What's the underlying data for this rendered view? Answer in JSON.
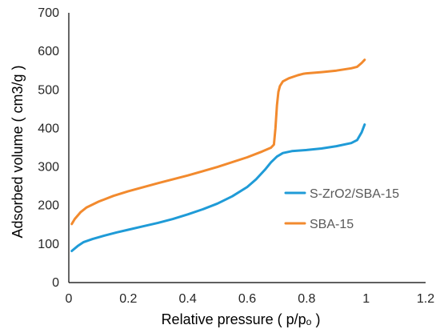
{
  "chart_data": {
    "type": "line",
    "xlabel": "Relative pressure ( p/pₒ )",
    "ylabel": "Adsorbed volume ( cm3/g )",
    "xlim": [
      0,
      1.2
    ],
    "ylim": [
      0,
      700
    ],
    "x_ticks": [
      0,
      0.2,
      0.4,
      0.6,
      0.8,
      1,
      1.2
    ],
    "x_tick_labels": [
      "0",
      "0.2",
      "0.4",
      "0.6",
      "0.8",
      "1",
      "1.2"
    ],
    "y_ticks": [
      0,
      100,
      200,
      300,
      400,
      500,
      600,
      700
    ],
    "y_tick_labels": [
      "0",
      "100",
      "200",
      "300",
      "400",
      "500",
      "600",
      "700"
    ],
    "grid": false,
    "legend_position": "right",
    "series": [
      {
        "name": "S-ZrO2/SBA-15",
        "color": "#1f9bd7",
        "x": [
          0.01,
          0.03,
          0.05,
          0.08,
          0.12,
          0.16,
          0.2,
          0.25,
          0.3,
          0.35,
          0.4,
          0.45,
          0.5,
          0.55,
          0.6,
          0.63,
          0.66,
          0.68,
          0.7,
          0.72,
          0.75,
          0.8,
          0.85,
          0.9,
          0.95,
          0.97,
          0.985,
          0.995
        ],
        "y": [
          82,
          95,
          105,
          113,
          122,
          130,
          137,
          146,
          155,
          165,
          177,
          190,
          205,
          224,
          248,
          268,
          293,
          312,
          327,
          336,
          341,
          344,
          348,
          354,
          362,
          370,
          390,
          410
        ]
      },
      {
        "name": "SBA-15",
        "color": "#f28a2e",
        "x": [
          0.01,
          0.02,
          0.04,
          0.06,
          0.1,
          0.15,
          0.2,
          0.3,
          0.4,
          0.5,
          0.6,
          0.65,
          0.68,
          0.69,
          0.695,
          0.7,
          0.705,
          0.71,
          0.72,
          0.74,
          0.77,
          0.79,
          0.8,
          0.85,
          0.9,
          0.95,
          0.97,
          0.985,
          0.995
        ],
        "y": [
          152,
          165,
          183,
          195,
          210,
          225,
          237,
          258,
          278,
          300,
          325,
          340,
          350,
          358,
          400,
          460,
          495,
          510,
          522,
          530,
          538,
          542,
          543,
          546,
          550,
          556,
          560,
          570,
          578
        ]
      }
    ]
  }
}
